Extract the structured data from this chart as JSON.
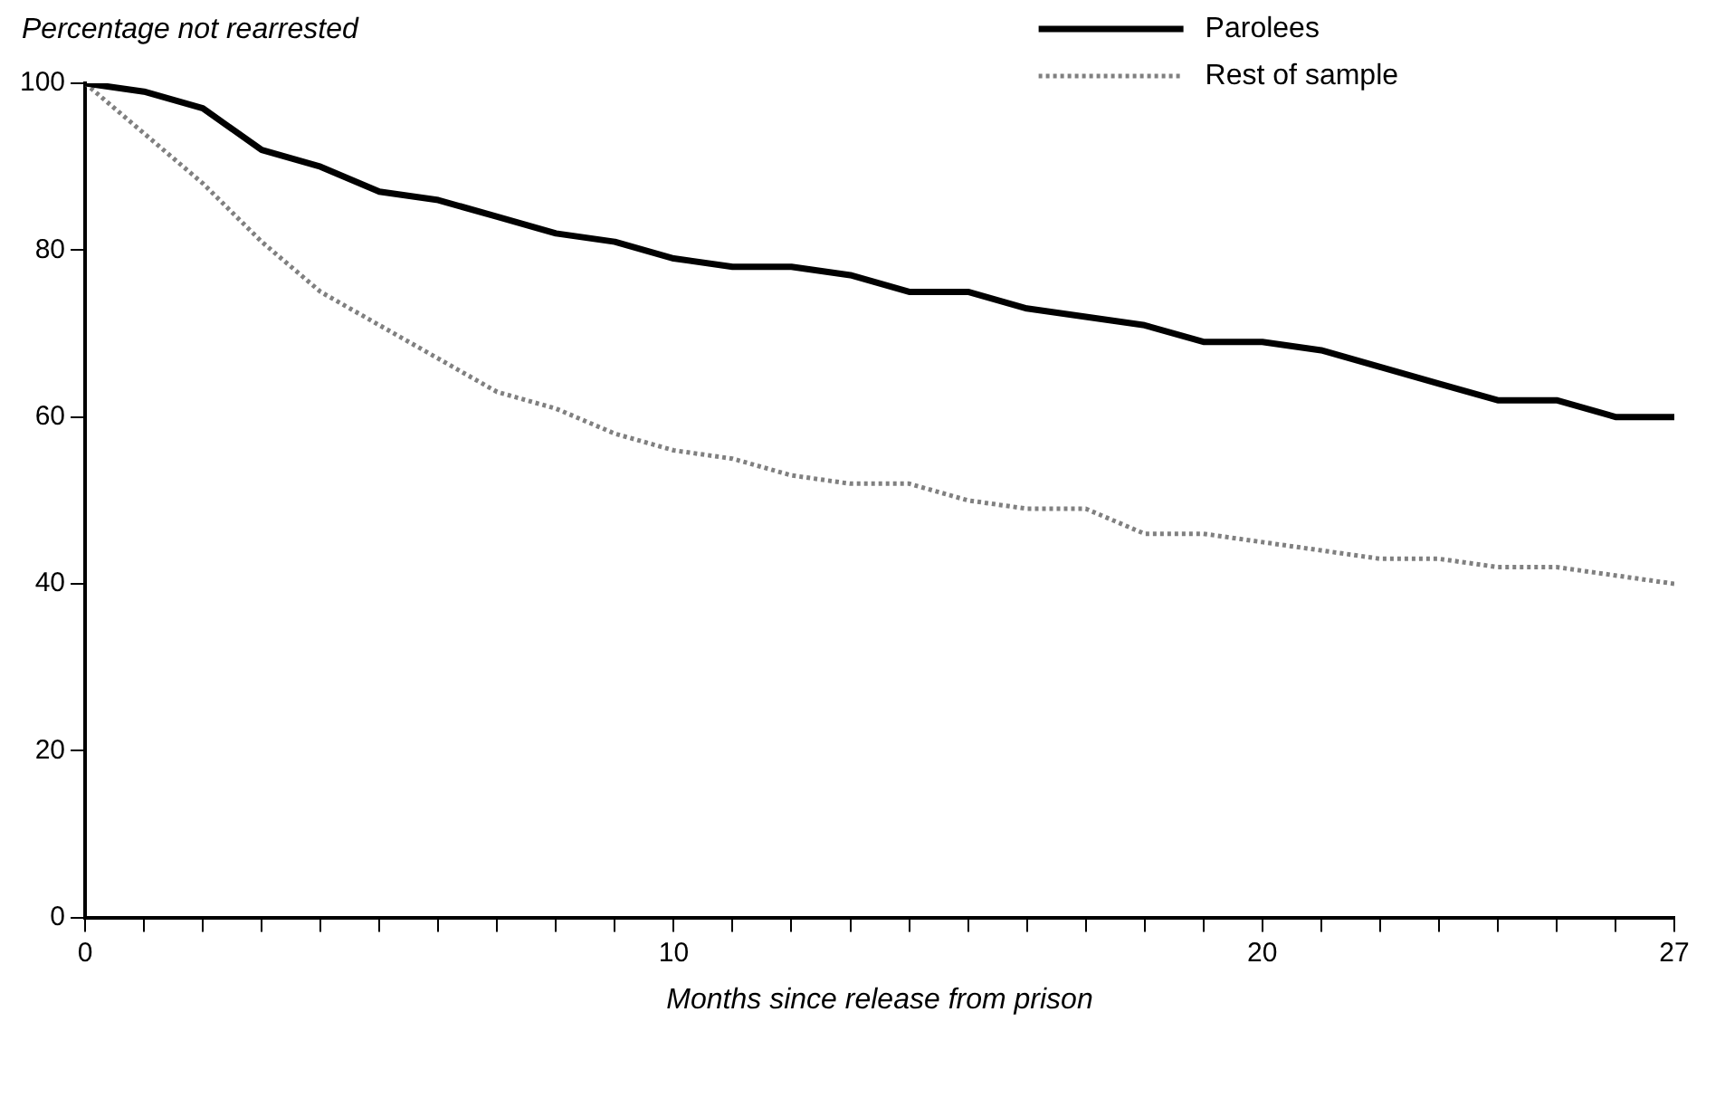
{
  "chart_data": {
    "type": "line",
    "ylabel": "Percentage not rearrested",
    "xlabel": "Months since release from prison",
    "x": [
      0,
      1,
      2,
      3,
      4,
      5,
      6,
      7,
      8,
      9,
      10,
      11,
      12,
      13,
      14,
      15,
      16,
      17,
      18,
      19,
      20,
      21,
      22,
      23,
      24,
      25,
      26,
      27
    ],
    "series": [
      {
        "name": "Parolees",
        "color": "#000000",
        "line_style": "solid",
        "values": [
          100,
          99,
          97,
          92,
          90,
          87,
          86,
          84,
          82,
          81,
          79,
          78,
          78,
          77,
          75,
          75,
          73,
          72,
          71,
          69,
          69,
          68,
          66,
          64,
          62,
          62,
          60,
          60
        ]
      },
      {
        "name": "Rest of sample",
        "color": "#808080",
        "line_style": "dotted",
        "values": [
          100,
          94,
          88,
          81,
          75,
          71,
          67,
          63,
          61,
          58,
          56,
          55,
          53,
          52,
          52,
          50,
          49,
          49,
          46,
          46,
          45,
          44,
          43,
          43,
          42,
          42,
          41,
          40
        ]
      }
    ],
    "xlim": [
      0,
      27
    ],
    "xticks": [
      0,
      {
        "value": 1,
        "label": null
      },
      {
        "value": 2,
        "label": null
      },
      {
        "value": 3,
        "label": null
      },
      {
        "value": 4,
        "label": null
      },
      {
        "value": 5,
        "label": null
      },
      {
        "value": 6,
        "label": null
      },
      {
        "value": 7,
        "label": null
      },
      {
        "value": 8,
        "label": null
      },
      {
        "value": 9,
        "label": null
      },
      10,
      {
        "value": 11,
        "label": null
      },
      {
        "value": 12,
        "label": null
      },
      {
        "value": 13,
        "label": null
      },
      {
        "value": 14,
        "label": null
      },
      {
        "value": 15,
        "label": null
      },
      {
        "value": 16,
        "label": null
      },
      {
        "value": 17,
        "label": null
      },
      {
        "value": 18,
        "label": null
      },
      {
        "value": 19,
        "label": null
      },
      20,
      {
        "value": 21,
        "label": null
      },
      {
        "value": 22,
        "label": null
      },
      {
        "value": 23,
        "label": null
      },
      {
        "value": 24,
        "label": null
      },
      {
        "value": 25,
        "label": null
      },
      {
        "value": 26,
        "label": null
      },
      27
    ],
    "ylim": [
      0,
      100
    ],
    "yticks": [
      0,
      20,
      40,
      60,
      80,
      100
    ],
    "grid": false,
    "legend": "top right",
    "marker": "none"
  }
}
